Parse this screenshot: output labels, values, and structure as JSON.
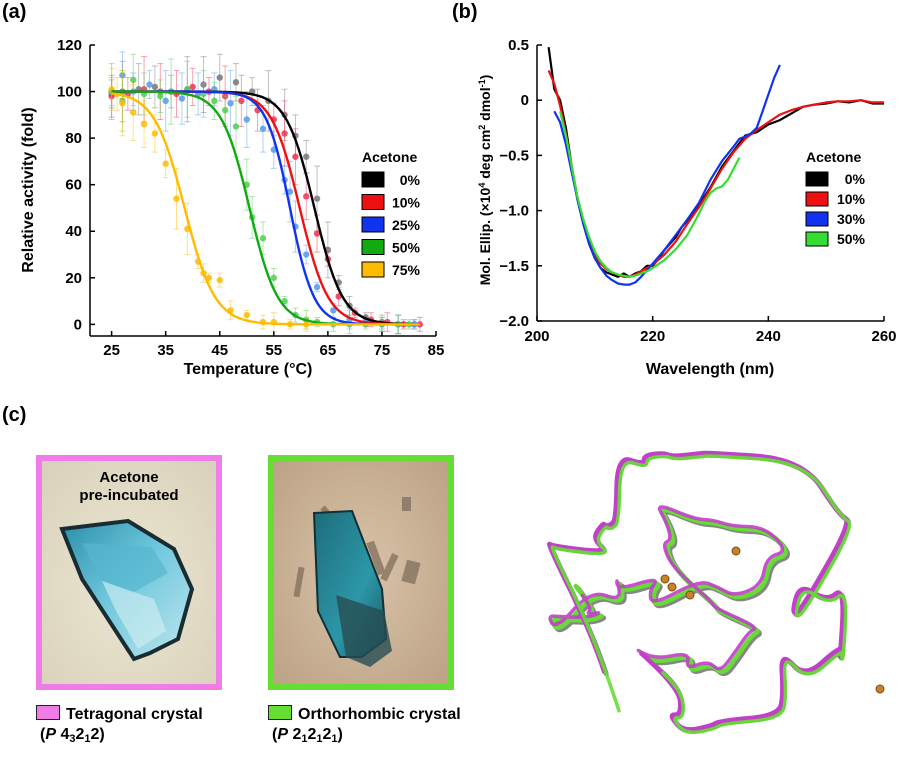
{
  "panel_a": {
    "letter": "(a)",
    "xlabel": "Temperature (°C)",
    "ylabel": "Relative activity (fold)",
    "legend_title": "Acetone"
  },
  "panel_b": {
    "letter": "(b)",
    "xlabel": "Wavelength (nm)",
    "ylabel_prefix": "Mol. Ellip. (×10",
    "ylabel_sup1": "4",
    "ylabel_mid": " deg cm",
    "ylabel_sup2": "2",
    "ylabel_mid2": " dmol",
    "ylabel_sup3": "-1",
    "ylabel_suffix": ")",
    "legend_title": "Acetone"
  },
  "panel_c": {
    "letter": "(c)",
    "pre_label_line1": "Acetone",
    "pre_label_line2": "pre-incubated",
    "left_crystal": {
      "name": "Tetragonal crystal",
      "group_main": "(P 4",
      "group_sub1": "3",
      "group_mid": "2",
      "group_sub2": "1",
      "group_end": "2)",
      "color": "#f07ce8"
    },
    "right_crystal": {
      "name": "Orthorhombic crystal",
      "group_main": "(P 2",
      "group_sub1": "1",
      "group_mid": "2",
      "group_sub2": "1",
      "group_mid2": "2",
      "group_sub3": "1",
      "group_end": ")",
      "color": "#66dd33"
    },
    "structure_colors": {
      "tetragonal": "#c040c8",
      "orthorhombic": "#66dd33"
    }
  },
  "chart_data": [
    {
      "type": "scatter",
      "title": "",
      "xlabel": "Temperature (°C)",
      "ylabel": "Relative activity (fold)",
      "xlim": [
        21,
        85
      ],
      "ylim": [
        -5,
        120
      ],
      "xticks": [
        25,
        35,
        45,
        55,
        65,
        75,
        85
      ],
      "yticks": [
        0,
        20,
        40,
        60,
        80,
        100,
        120
      ],
      "legend_title": "Acetone",
      "legend_placement": "right",
      "series": [
        {
          "name": "0%",
          "color": "#000000",
          "point_color": "#777777",
          "tm": 62.5,
          "slope": 2.6,
          "x": [
            25,
            27,
            30,
            33,
            36,
            39,
            42,
            45,
            48,
            51,
            54,
            57,
            59,
            61,
            63,
            65,
            67,
            69,
            72,
            75,
            78,
            81
          ],
          "y": [
            99,
            100,
            101,
            102,
            100,
            101,
            103,
            106,
            104,
            100,
            96,
            90,
            81,
            72,
            54,
            32,
            18,
            8,
            3,
            1,
            0,
            0
          ]
        },
        {
          "name": "10%",
          "color": "#ee1111",
          "point_color": "#ee3355",
          "tm": 59.8,
          "slope": 2.6,
          "x": [
            25,
            28,
            31,
            34,
            37,
            40,
            43,
            46,
            49,
            52,
            55,
            57,
            59,
            61,
            63,
            65,
            67,
            70,
            73,
            76,
            79,
            82
          ],
          "y": [
            98,
            99,
            101,
            100,
            99,
            102,
            100,
            98,
            96,
            92,
            88,
            82,
            72,
            55,
            39,
            28,
            12,
            5,
            2,
            1,
            0,
            0
          ]
        },
        {
          "name": "25%",
          "color": "#1133ee",
          "point_color": "#5599ee",
          "tm": 58.0,
          "slope": 2.2,
          "x": [
            25,
            27,
            29,
            32,
            35,
            38,
            41,
            44,
            47,
            50,
            53,
            55,
            57,
            58,
            59,
            61,
            63,
            66,
            69,
            72,
            75,
            78,
            81
          ],
          "y": [
            100,
            107,
            100,
            103,
            96,
            97,
            99,
            101,
            95,
            88,
            84,
            75,
            62,
            57,
            42,
            30,
            16,
            6,
            2,
            1,
            0,
            0,
            0
          ]
        },
        {
          "name": "50%",
          "color": "#11aa11",
          "point_color": "#55cc55",
          "tm": 50.5,
          "slope": 2.6,
          "x": [
            25,
            27,
            29,
            31,
            34,
            36,
            39,
            42,
            44,
            46,
            48,
            50,
            51,
            53,
            55,
            57,
            59,
            61,
            63,
            66,
            69,
            72,
            75,
            78,
            80
          ],
          "y": [
            100,
            96,
            105,
            99,
            98,
            100,
            101,
            99,
            96,
            92,
            85,
            60,
            46,
            37,
            20,
            10,
            4,
            2,
            1,
            0,
            0,
            0,
            0,
            0,
            0
          ]
        },
        {
          "name": "75%",
          "color": "#ffbb00",
          "point_color": "#ffbb00",
          "tm": 38.5,
          "slope": 2.8,
          "x": [
            25,
            26,
            27,
            29,
            31,
            33,
            35,
            37,
            39,
            41,
            42,
            43,
            45,
            47,
            50,
            53,
            55,
            58,
            61
          ],
          "y": [
            101,
            99,
            95,
            91,
            86,
            82,
            69,
            54,
            41,
            27,
            22,
            20,
            19,
            6,
            4,
            1,
            1,
            0,
            0
          ]
        }
      ]
    },
    {
      "type": "line",
      "title": "",
      "xlabel": "Wavelength (nm)",
      "ylabel": "Mol. Ellip. (×10^4 deg cm^2 dmol^-1)",
      "xlim": [
        200,
        260
      ],
      "ylim": [
        -2.0,
        0.5
      ],
      "xticks": [
        200,
        220,
        240,
        260
      ],
      "yticks": [
        0.5,
        0,
        -0.5,
        -1.0,
        -1.5,
        -2.0
      ],
      "ytick_labels": [
        "0.5",
        "0",
        "−0.5",
        "−1.0",
        "−1.5",
        "−2.0"
      ],
      "legend_title": "Acetone",
      "legend_placement": "right",
      "series": [
        {
          "name": "0%",
          "color": "#000000",
          "x": [
            202,
            203,
            204,
            205,
            206,
            207,
            208,
            209,
            210,
            211,
            212,
            213,
            214,
            215,
            216,
            217,
            218,
            219,
            220,
            221,
            222,
            223,
            224,
            225,
            226,
            228,
            230,
            232,
            234,
            236,
            238,
            240,
            242,
            244,
            246,
            248,
            250,
            252,
            254,
            256,
            258,
            260
          ],
          "y": [
            0.48,
            0.1,
            0.0,
            -0.25,
            -0.6,
            -0.9,
            -1.12,
            -1.3,
            -1.43,
            -1.52,
            -1.56,
            -1.58,
            -1.6,
            -1.57,
            -1.6,
            -1.57,
            -1.55,
            -1.5,
            -1.5,
            -1.44,
            -1.36,
            -1.3,
            -1.24,
            -1.15,
            -1.09,
            -0.95,
            -0.79,
            -0.6,
            -0.46,
            -0.32,
            -0.29,
            -0.22,
            -0.18,
            -0.12,
            -0.06,
            -0.04,
            -0.03,
            -0.01,
            -0.02,
            0.0,
            -0.03,
            -0.03
          ]
        },
        {
          "name": "10%",
          "color": "#ee1111",
          "x": [
            202,
            203,
            204,
            205,
            206,
            207,
            208,
            209,
            210,
            211,
            212,
            213,
            214,
            215,
            216,
            217,
            218,
            219,
            220,
            222,
            224,
            226,
            228,
            230,
            232,
            234,
            236,
            238,
            240,
            242,
            244,
            246,
            248,
            250,
            252,
            254,
            256,
            258,
            260
          ],
          "y": [
            0.27,
            0.15,
            -0.05,
            -0.3,
            -0.6,
            -0.88,
            -1.1,
            -1.27,
            -1.4,
            -1.48,
            -1.53,
            -1.56,
            -1.58,
            -1.6,
            -1.6,
            -1.58,
            -1.55,
            -1.52,
            -1.49,
            -1.4,
            -1.28,
            -1.12,
            -0.97,
            -0.8,
            -0.62,
            -0.47,
            -0.35,
            -0.27,
            -0.2,
            -0.13,
            -0.09,
            -0.06,
            -0.04,
            -0.02,
            -0.01,
            -0.01,
            0.0,
            -0.02,
            -0.02
          ]
        },
        {
          "name": "30%",
          "color": "#1133ee",
          "x": [
            203,
            204,
            205,
            206,
            207,
            208,
            209,
            210,
            211,
            212,
            213,
            214,
            215,
            216,
            217,
            218,
            219,
            220,
            222,
            224,
            226,
            228,
            230,
            232,
            234,
            235,
            236,
            237,
            238,
            239,
            240,
            241,
            242
          ],
          "y": [
            -0.1,
            -0.2,
            -0.4,
            -0.65,
            -0.9,
            -1.12,
            -1.3,
            -1.43,
            -1.52,
            -1.59,
            -1.63,
            -1.66,
            -1.67,
            -1.67,
            -1.65,
            -1.6,
            -1.54,
            -1.48,
            -1.36,
            -1.22,
            -1.08,
            -0.93,
            -0.72,
            -0.55,
            -0.42,
            -0.35,
            -0.33,
            -0.3,
            -0.25,
            -0.1,
            0.05,
            0.2,
            0.32
          ]
        },
        {
          "name": "50%",
          "color": "#33dd33",
          "x": [
            204,
            205,
            206,
            207,
            208,
            209,
            210,
            211,
            212,
            213,
            214,
            215,
            216,
            217,
            218,
            219,
            220,
            222,
            224,
            226,
            228,
            229,
            230,
            231,
            232,
            233,
            234,
            235
          ],
          "y": [
            -0.1,
            -0.32,
            -0.6,
            -0.88,
            -1.08,
            -1.24,
            -1.37,
            -1.46,
            -1.52,
            -1.56,
            -1.58,
            -1.59,
            -1.6,
            -1.59,
            -1.57,
            -1.55,
            -1.52,
            -1.45,
            -1.35,
            -1.22,
            -1.03,
            -0.92,
            -0.84,
            -0.8,
            -0.78,
            -0.72,
            -0.62,
            -0.52
          ]
        }
      ]
    }
  ]
}
